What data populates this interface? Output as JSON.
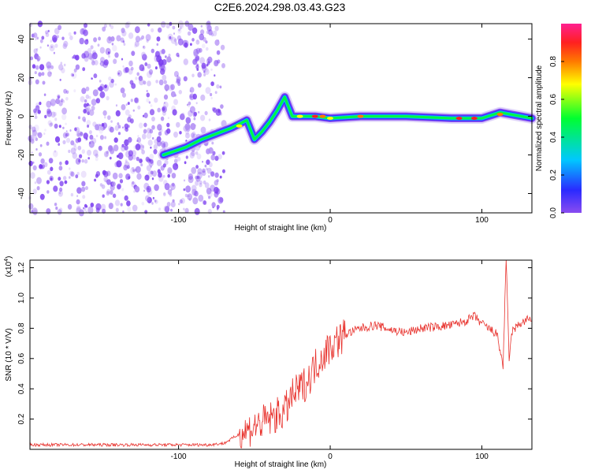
{
  "title": "C2E6.2024.298.03.43.G23",
  "chart_data": [
    {
      "type": "heatmap",
      "xlabel": "Height of straight line (km)",
      "ylabel": "Frequency (Hz)",
      "xlim": [
        -198,
        133
      ],
      "ylim": [
        -50,
        48
      ],
      "xticks": [
        -100,
        0,
        100
      ],
      "xtick_labels": [
        "-100",
        "0",
        "100"
      ],
      "yticks": [
        -40,
        -20,
        0,
        20,
        40
      ],
      "ytick_labels": [
        "-40",
        "-20",
        "0",
        "20",
        "40"
      ],
      "colorbar": {
        "label": "Normalized spectral amplitude",
        "range": [
          0,
          1
        ],
        "ticks": [
          0.0,
          0.2,
          0.4,
          0.6,
          0.8
        ],
        "tick_labels": [
          "0.0",
          "0.2",
          "0.4",
          "0.6",
          "0.8"
        ],
        "colors": [
          "#8a4cf0",
          "#2a2aff",
          "#00c8ff",
          "#00ff30",
          "#ffff00",
          "#ff7a00",
          "#ff2020",
          "#ff2090"
        ]
      },
      "noise_region_xlim": [
        -198,
        -70
      ],
      "track": [
        {
          "x": -110,
          "y": -20
        },
        {
          "x": -95,
          "y": -16
        },
        {
          "x": -85,
          "y": -12
        },
        {
          "x": -75,
          "y": -9
        },
        {
          "x": -65,
          "y": -6
        },
        {
          "x": -55,
          "y": -2
        },
        {
          "x": -50,
          "y": -12
        },
        {
          "x": -45,
          "y": -8
        },
        {
          "x": -40,
          "y": -3
        },
        {
          "x": -35,
          "y": 3
        },
        {
          "x": -30,
          "y": 10
        },
        {
          "x": -25,
          "y": 0
        },
        {
          "x": -10,
          "y": 0
        },
        {
          "x": 0,
          "y": -1
        },
        {
          "x": 20,
          "y": 0
        },
        {
          "x": 50,
          "y": 0
        },
        {
          "x": 80,
          "y": -1
        },
        {
          "x": 100,
          "y": -1
        },
        {
          "x": 112,
          "y": 2
        },
        {
          "x": 133,
          "y": -1
        }
      ]
    },
    {
      "type": "line",
      "xlabel": "Height of straight line (km)",
      "ylabel": "SNR (10 * V/V)",
      "scale_label": "(x10",
      "scale_exponent": "4",
      "scale_suffix": ")",
      "xlim": [
        -198,
        133
      ],
      "ylim": [
        0,
        1.25
      ],
      "xticks": [
        -100,
        0,
        100
      ],
      "xtick_labels": [
        "-100",
        "0",
        "100"
      ],
      "yticks": [
        0.2,
        0.4,
        0.6,
        0.8,
        1.0,
        1.2
      ],
      "ytick_labels": [
        "0.2",
        "0.4",
        "0.6",
        "0.8",
        "1.0",
        "1.2"
      ],
      "color": "#e8332e",
      "series": [
        {
          "x": [
            -198,
            -180,
            -160,
            -140,
            -120,
            -100,
            -80,
            -70,
            -60,
            -50,
            -40,
            -30,
            -25,
            -20,
            -15,
            -10,
            -5,
            0,
            10,
            20,
            30,
            40,
            50,
            60,
            70,
            80,
            90,
            95,
            100,
            110,
            114,
            116,
            118,
            120,
            125,
            133
          ],
          "y": [
            0.03,
            0.03,
            0.03,
            0.03,
            0.03,
            0.03,
            0.03,
            0.04,
            0.1,
            0.15,
            0.2,
            0.25,
            0.35,
            0.4,
            0.45,
            0.55,
            0.62,
            0.68,
            0.76,
            0.8,
            0.82,
            0.79,
            0.77,
            0.8,
            0.81,
            0.82,
            0.85,
            0.88,
            0.83,
            0.76,
            0.55,
            1.25,
            0.6,
            0.78,
            0.83,
            0.87
          ]
        }
      ]
    }
  ]
}
